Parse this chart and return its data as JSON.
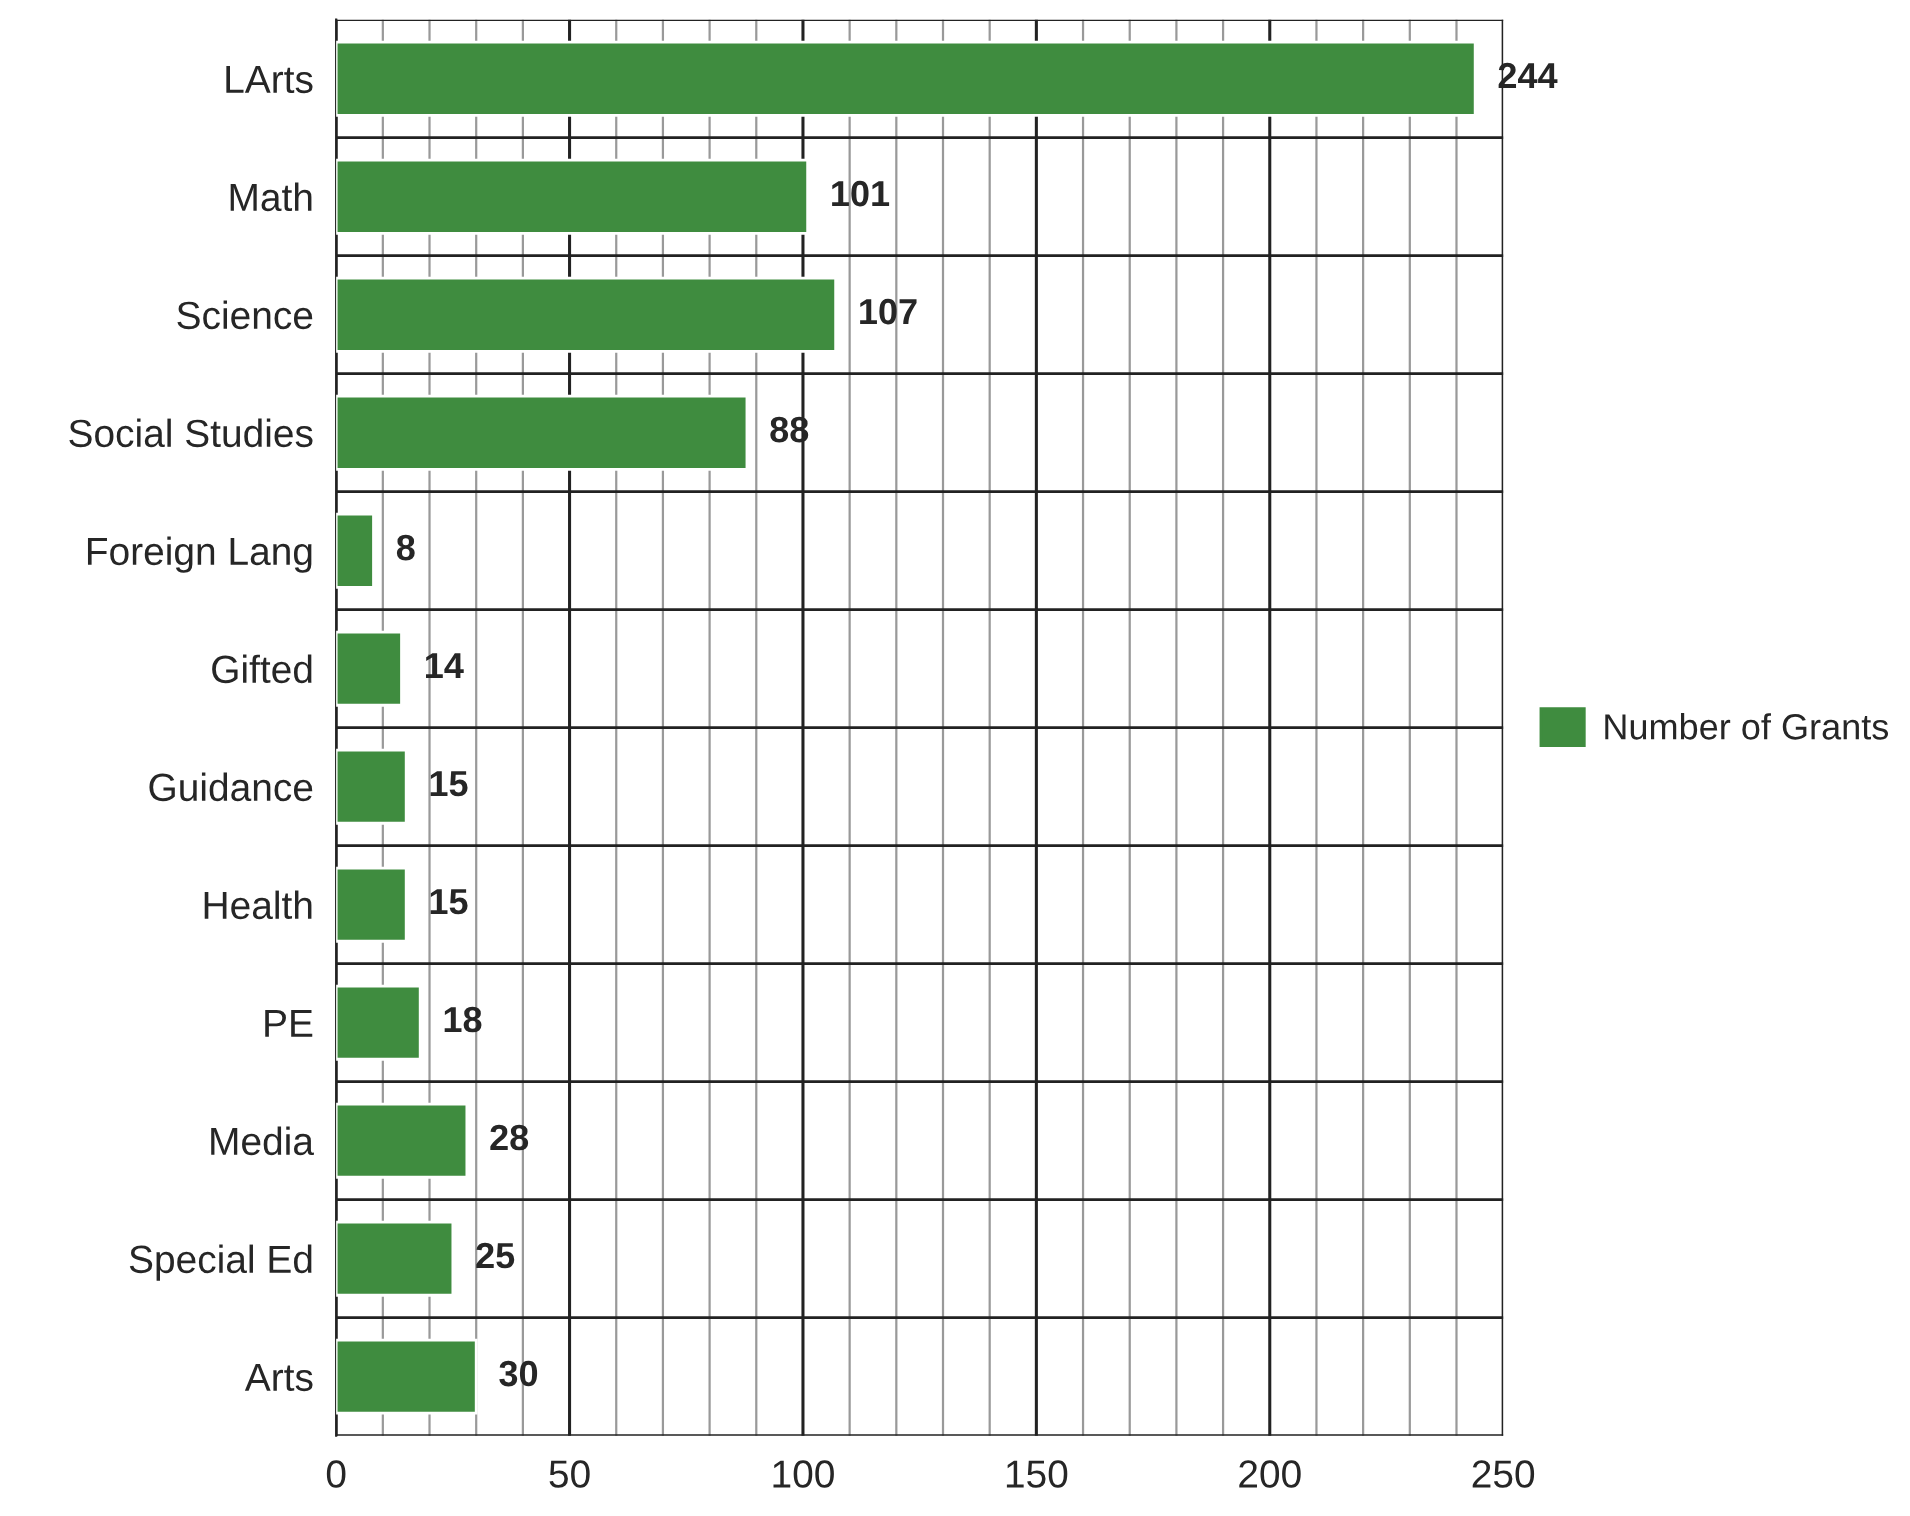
{
  "chart_data": {
    "type": "bar",
    "orientation": "horizontal",
    "categories": [
      "LArts",
      "Math",
      "Science",
      "Social Studies",
      "Foreign Lang",
      "Gifted",
      "Guidance",
      "Health",
      "PE",
      "Media",
      "Special Ed",
      "Arts"
    ],
    "series": [
      {
        "name": "Number of Grants",
        "color": "#3f8c3f",
        "values": [
          244,
          101,
          107,
          88,
          8,
          14,
          15,
          15,
          18,
          28,
          25,
          30
        ]
      }
    ],
    "data_labels": true,
    "xlim": [
      0,
      250
    ],
    "xticks": [
      0,
      {
        "value": 10,
        "label": null
      },
      {
        "value": 20,
        "label": null
      },
      {
        "value": 30,
        "label": null
      },
      {
        "value": 40,
        "label": null
      },
      50,
      {
        "value": 60,
        "label": null
      },
      {
        "value": 70,
        "label": null
      },
      {
        "value": 80,
        "label": null
      },
      {
        "value": 90,
        "label": null
      },
      100,
      {
        "value": 110,
        "label": null
      },
      {
        "value": 120,
        "label": null
      },
      {
        "value": 130,
        "label": null
      },
      {
        "value": 140,
        "label": null
      },
      150,
      {
        "value": 160,
        "label": null
      },
      {
        "value": 170,
        "label": null
      },
      {
        "value": 180,
        "label": null
      },
      {
        "value": 190,
        "label": null
      },
      200,
      {
        "value": 210,
        "label": null
      },
      {
        "value": 220,
        "label": null
      },
      {
        "value": 230,
        "label": null
      },
      {
        "value": 240,
        "label": null
      },
      250
    ],
    "grid": true,
    "legend": "right"
  }
}
